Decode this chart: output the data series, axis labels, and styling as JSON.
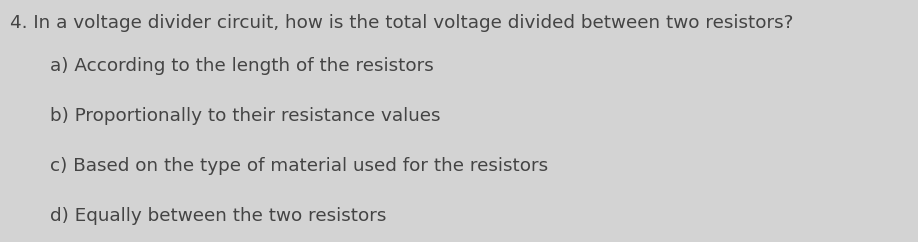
{
  "background_color": "#d3d3d3",
  "question": "4. In a voltage divider circuit, how is the total voltage divided between two resistors?",
  "options": [
    "a) According to the length of the resistors",
    "b) Proportionally to their resistance values",
    "c) Based on the type of material used for the resistors",
    "d) Equally between the two resistors"
  ],
  "question_fontsize": 13.2,
  "options_fontsize": 13.2,
  "text_color": "#444444",
  "font_family": "sans-serif"
}
